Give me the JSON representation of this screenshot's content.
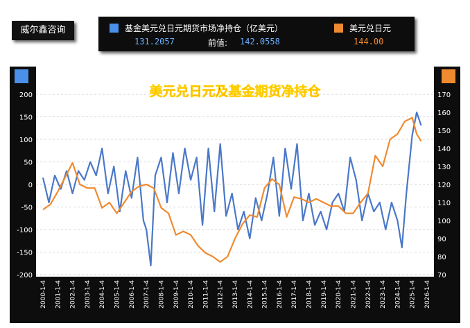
{
  "brand": "威尔鑫咨询",
  "legend": {
    "series1_label": "基金美元兑日元期货市场净持仓（亿美元）",
    "series1_value": "131.2057",
    "prev_label": "前值:",
    "prev_value": "142.0558",
    "series2_label": "美元兑日元",
    "series2_value": "144.00"
  },
  "colors": {
    "series1": "#4a78c8",
    "series2": "#f08a30",
    "panel": "#0d0d0d"
  },
  "chart_data": {
    "type": "line",
    "title": "美元兑日元及基金期货净持仓",
    "x_tick_labels": [
      "2000-1-4",
      "2001-1-4",
      "2002-1-4",
      "2003-1-4",
      "2004-1-4",
      "2005-1-4",
      "2006-1-4",
      "2007-1-4",
      "2008-1-4",
      "2009-1-4",
      "2010-1-4",
      "2011-1-4",
      "2012-1-4",
      "2013-1-4",
      "2014-1-4",
      "2015-1-4",
      "2016-1-4",
      "2017-1-4",
      "2018-1-4",
      "2019-1-4",
      "2020-1-4",
      "2021-1-4",
      "2022-1-4",
      "2023-1-4",
      "2024-1-4",
      "2025-1-4",
      "2026-1-4"
    ],
    "left_axis": {
      "ylim": [
        -200,
        200
      ],
      "ticks": [
        "200",
        "150",
        "100",
        "50",
        "0",
        "-50",
        "-100",
        "-150",
        "-200"
      ]
    },
    "right_axis": {
      "ylim": [
        70,
        170
      ],
      "ticks": [
        "170",
        "160",
        "150",
        "140",
        "130",
        "120",
        "110",
        "100",
        "90",
        "80",
        "70"
      ]
    },
    "grid": true,
    "series": [
      {
        "name": "基金美元兑日元期货市场净持仓（亿美元）",
        "axis": "left",
        "x": [
          2000.0,
          2000.4,
          2000.8,
          2001.2,
          2001.6,
          2002.0,
          2002.4,
          2002.8,
          2003.2,
          2003.6,
          2004.0,
          2004.4,
          2004.8,
          2005.2,
          2005.6,
          2006.0,
          2006.4,
          2006.8,
          2007.0,
          2007.3,
          2007.6,
          2008.0,
          2008.4,
          2008.8,
          2009.2,
          2009.6,
          2010.0,
          2010.4,
          2010.8,
          2011.2,
          2011.6,
          2012.0,
          2012.4,
          2012.8,
          2013.2,
          2013.6,
          2014.0,
          2014.4,
          2014.8,
          2015.2,
          2015.6,
          2016.0,
          2016.4,
          2016.8,
          2017.2,
          2017.6,
          2018.0,
          2018.4,
          2018.8,
          2019.2,
          2019.6,
          2020.0,
          2020.4,
          2020.8,
          2021.2,
          2021.6,
          2022.0,
          2022.4,
          2022.8,
          2023.2,
          2023.6,
          2024.0,
          2024.3,
          2024.6,
          2025.0,
          2025.3,
          2025.6
        ],
        "values": [
          15,
          -40,
          20,
          -10,
          30,
          -20,
          30,
          10,
          50,
          20,
          80,
          -20,
          40,
          -60,
          30,
          -30,
          60,
          -80,
          -100,
          -180,
          20,
          60,
          -40,
          70,
          -20,
          80,
          10,
          60,
          -90,
          80,
          -60,
          90,
          -70,
          -20,
          -100,
          -60,
          -120,
          -30,
          -80,
          -20,
          60,
          -70,
          80,
          -10,
          90,
          -80,
          -20,
          -90,
          -60,
          -100,
          -40,
          -20,
          -60,
          60,
          10,
          -80,
          -20,
          -60,
          -40,
          -100,
          -40,
          -80,
          -140,
          -20,
          110,
          160,
          131
        ]
      },
      {
        "name": "美元兑日元",
        "axis": "right",
        "x": [
          2000.0,
          2000.5,
          2001.0,
          2001.5,
          2002.0,
          2002.5,
          2003.0,
          2003.5,
          2004.0,
          2004.5,
          2005.0,
          2005.5,
          2006.0,
          2006.5,
          2007.0,
          2007.5,
          2008.0,
          2008.5,
          2009.0,
          2009.5,
          2010.0,
          2010.5,
          2011.0,
          2011.5,
          2012.0,
          2012.5,
          2013.0,
          2013.5,
          2014.0,
          2014.5,
          2015.0,
          2015.5,
          2016.0,
          2016.5,
          2017.0,
          2017.5,
          2018.0,
          2018.5,
          2019.0,
          2019.5,
          2020.0,
          2020.5,
          2021.0,
          2021.5,
          2022.0,
          2022.5,
          2023.0,
          2023.5,
          2024.0,
          2024.5,
          2025.0,
          2025.3,
          2025.6
        ],
        "values": [
          106,
          109,
          116,
          124,
          132,
          120,
          118,
          118,
          107,
          110,
          104,
          110,
          116,
          119,
          120,
          118,
          107,
          104,
          92,
          94,
          92,
          86,
          82,
          80,
          77,
          80,
          90,
          98,
          103,
          102,
          118,
          123,
          120,
          102,
          113,
          112,
          110,
          112,
          110,
          108,
          108,
          104,
          104,
          110,
          115,
          136,
          130,
          145,
          148,
          155,
          157,
          148,
          144
        ]
      }
    ]
  }
}
